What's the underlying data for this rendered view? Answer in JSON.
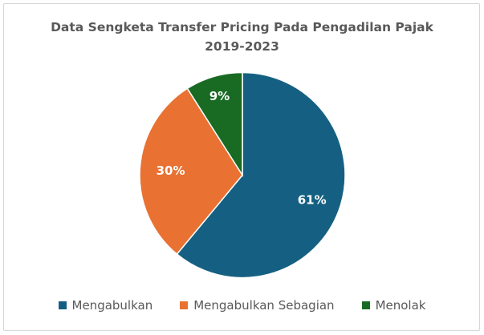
{
  "chart_data": {
    "type": "pie",
    "title": "Data Sengketa Transfer Pricing Pada Pengadilan Pajak",
    "subtitle": "2019-2023",
    "categories": [
      "Mengabulkan",
      "Mengabulkan Sebagian",
      "Menolak"
    ],
    "values": [
      61,
      30,
      9
    ],
    "data_labels": [
      "61%",
      "30%",
      "9%"
    ],
    "colors": [
      "#156082",
      "#E97132",
      "#196B24"
    ],
    "legend_position": "bottom"
  }
}
